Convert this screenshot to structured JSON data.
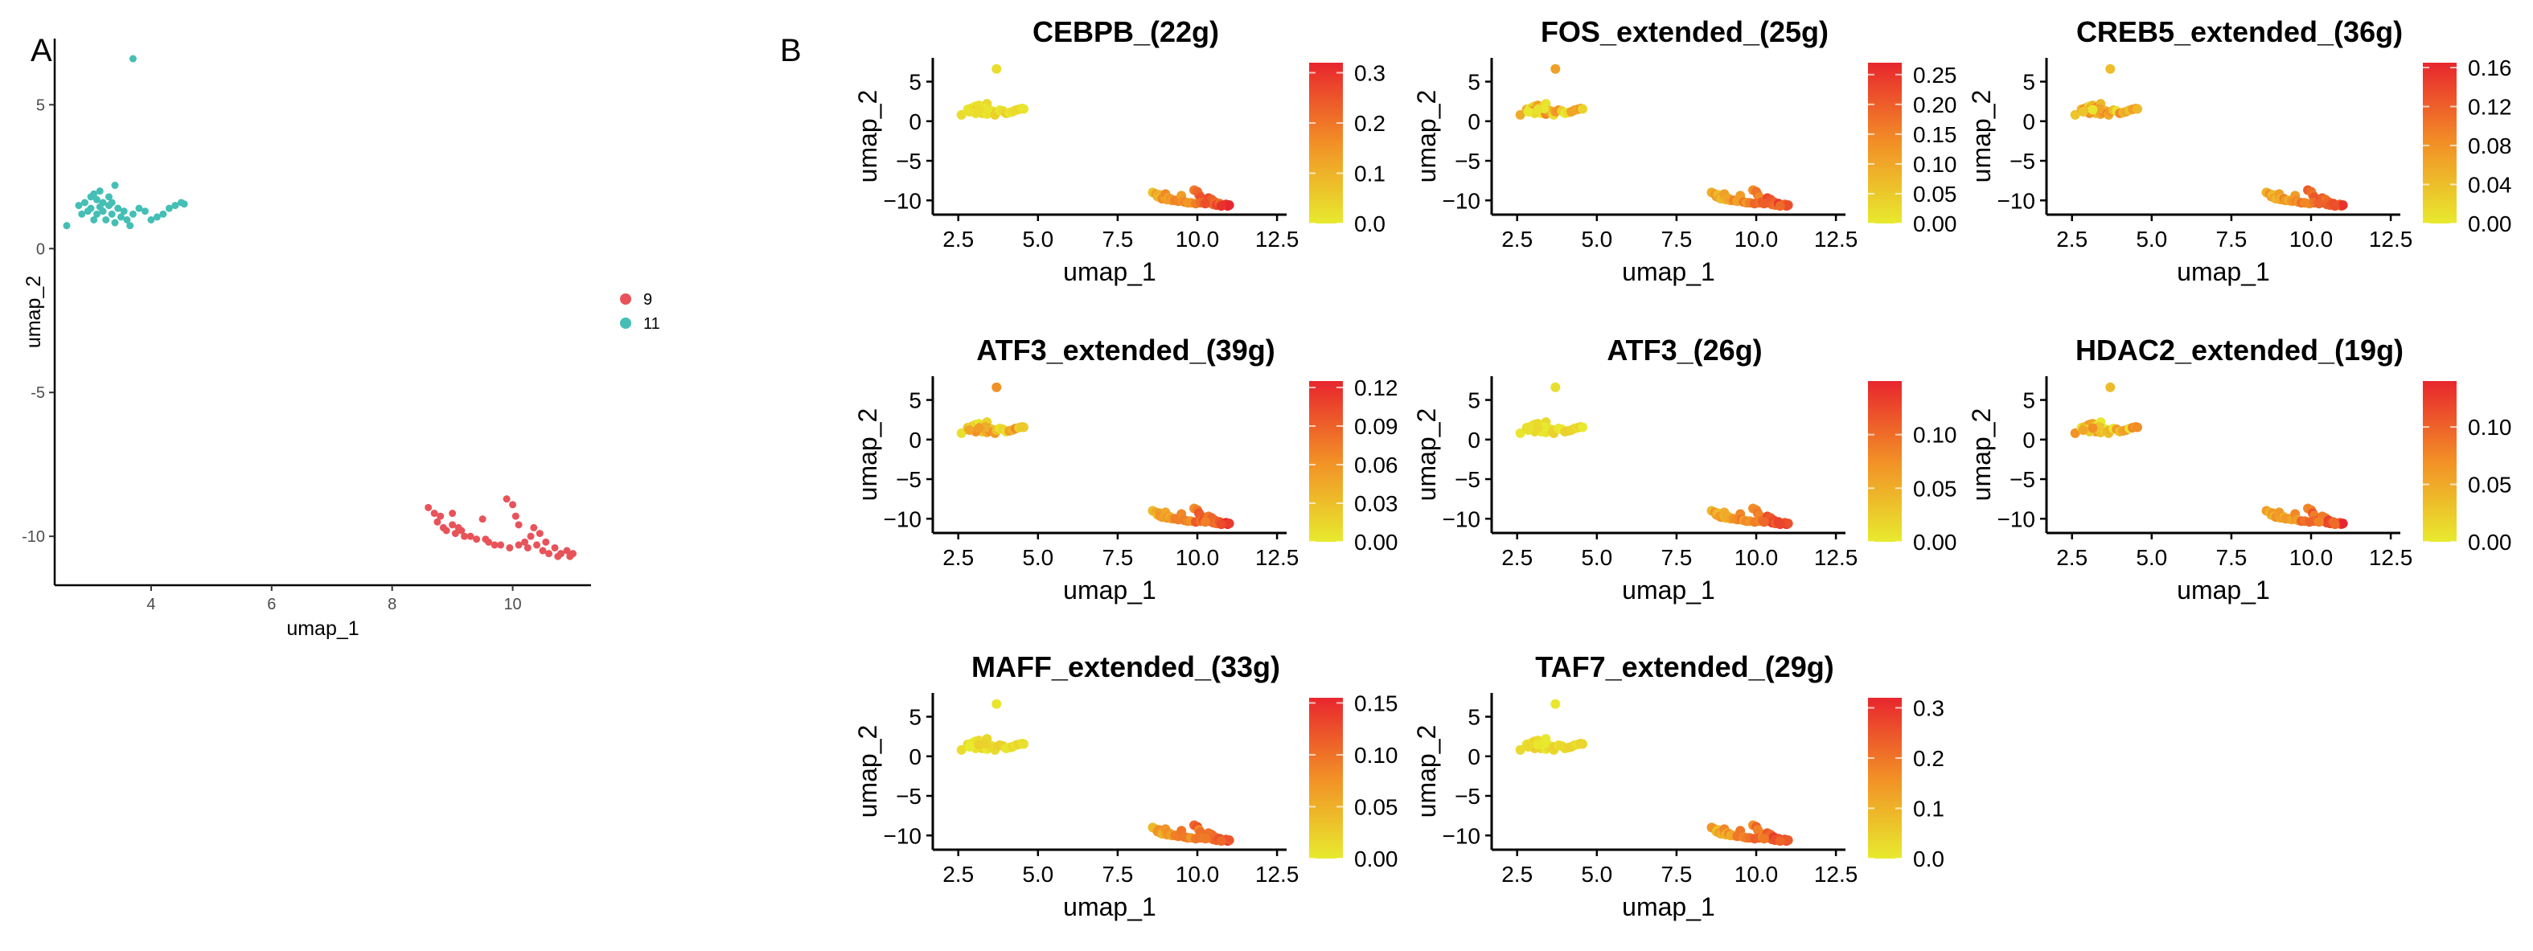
{
  "figure": {
    "panel_a_label": "A",
    "panel_b_label": "B"
  },
  "chart_data": [
    {
      "type": "scatter",
      "panel": "A",
      "title": "",
      "xlabel": "umap_1",
      "ylabel": "umap_2",
      "xlim": [
        2.4,
        11.3
      ],
      "ylim": [
        -11.7,
        7.3
      ],
      "xticks": [
        4,
        6,
        8,
        10
      ],
      "yticks": [
        5,
        0,
        -5,
        -10
      ],
      "legend": {
        "placement": "right",
        "entries": [
          {
            "name": "9",
            "color": "#E8535A"
          },
          {
            "name": "11",
            "color": "#45BFB5"
          }
        ]
      },
      "series": [
        {
          "name": "11",
          "color": "#45BFB5",
          "points": [
            [
              3.7,
              6.6
            ],
            [
              2.6,
              0.8
            ],
            [
              2.8,
              1.5
            ],
            [
              2.9,
              1.6
            ],
            [
              3.0,
              1.8
            ],
            [
              3.0,
              1.4
            ],
            [
              3.05,
              1.9
            ],
            [
              3.1,
              1.7
            ],
            [
              3.1,
              1.2
            ],
            [
              3.15,
              2.0
            ],
            [
              3.2,
              1.6
            ],
            [
              3.2,
              1.3
            ],
            [
              3.25,
              1.0
            ],
            [
              3.3,
              1.8
            ],
            [
              3.3,
              1.5
            ],
            [
              3.35,
              1.2
            ],
            [
              3.4,
              2.2
            ],
            [
              3.4,
              0.9
            ],
            [
              3.45,
              1.4
            ],
            [
              3.5,
              1.1
            ],
            [
              3.55,
              1.3
            ],
            [
              3.6,
              1.0
            ],
            [
              3.65,
              0.8
            ],
            [
              3.7,
              1.2
            ],
            [
              3.8,
              1.4
            ],
            [
              3.9,
              1.3
            ],
            [
              4.0,
              1.0
            ],
            [
              4.1,
              1.1
            ],
            [
              4.2,
              1.2
            ],
            [
              4.3,
              1.4
            ],
            [
              4.4,
              1.5
            ],
            [
              4.5,
              1.6
            ],
            [
              4.55,
              1.55
            ],
            [
              2.95,
              1.3
            ],
            [
              3.05,
              1.0
            ],
            [
              3.35,
              1.6
            ],
            [
              3.15,
              1.45
            ],
            [
              2.85,
              1.2
            ]
          ]
        },
        {
          "name": "9",
          "color": "#E8535A",
          "points": [
            [
              8.6,
              -9.0
            ],
            [
              8.7,
              -9.2
            ],
            [
              8.75,
              -9.5
            ],
            [
              8.8,
              -9.3
            ],
            [
              8.85,
              -9.7
            ],
            [
              8.9,
              -9.8
            ],
            [
              9.0,
              -9.6
            ],
            [
              9.0,
              -9.2
            ],
            [
              9.05,
              -9.9
            ],
            [
              9.1,
              -9.7
            ],
            [
              9.15,
              -9.8
            ],
            [
              9.2,
              -10.0
            ],
            [
              9.3,
              -10.0
            ],
            [
              9.4,
              -10.1
            ],
            [
              9.5,
              -9.4
            ],
            [
              9.55,
              -10.1
            ],
            [
              9.6,
              -10.2
            ],
            [
              9.7,
              -10.3
            ],
            [
              9.8,
              -10.3
            ],
            [
              9.9,
              -8.7
            ],
            [
              10.0,
              -8.9
            ],
            [
              10.05,
              -9.3
            ],
            [
              10.1,
              -9.6
            ],
            [
              9.95,
              -10.4
            ],
            [
              10.1,
              -10.3
            ],
            [
              10.2,
              -10.2
            ],
            [
              10.3,
              -10.0
            ],
            [
              10.35,
              -9.7
            ],
            [
              10.4,
              -10.3
            ],
            [
              10.45,
              -9.9
            ],
            [
              10.5,
              -10.5
            ],
            [
              10.55,
              -10.2
            ],
            [
              10.6,
              -10.6
            ],
            [
              10.7,
              -10.4
            ],
            [
              10.8,
              -10.6
            ],
            [
              10.9,
              -10.5
            ],
            [
              10.95,
              -10.7
            ],
            [
              11.0,
              -10.6
            ],
            [
              10.75,
              -10.7
            ],
            [
              10.25,
              -10.4
            ]
          ]
        }
      ]
    },
    {
      "type": "scatter",
      "panel": "B",
      "xlabel": "umap_1",
      "ylabel": "umap_2",
      "xlim": [
        1.7,
        12.8
      ],
      "ylim": [
        -11.8,
        8.0
      ],
      "xticks": [
        "2.5",
        "5.0",
        "7.5",
        "10.0",
        "12.5"
      ],
      "yticks": [
        "5",
        "0",
        "-5",
        "-10"
      ],
      "color_scale": {
        "low": "#E8EA2E",
        "mid": "#F29026",
        "high": "#E8262E"
      },
      "subplots": [
        {
          "title": "CEBPB_(22g)",
          "colorbar_max": 0.32,
          "colorbar_ticks": [
            "0.0",
            "0.1",
            "0.2",
            "0.3"
          ],
          "colorbar_tick_values": [
            0.0,
            0.1,
            0.2,
            0.3
          ],
          "high_cluster": "9"
        },
        {
          "title": "FOS_extended_(25g)",
          "colorbar_max": 0.27,
          "colorbar_ticks": [
            "0.00",
            "0.05",
            "0.10",
            "0.15",
            "0.20",
            "0.25"
          ],
          "colorbar_tick_values": [
            0.0,
            0.05,
            0.1,
            0.15,
            0.2,
            0.25
          ],
          "high_cluster": "both"
        },
        {
          "title": "CREB5_extended_(36g)",
          "colorbar_max": 0.165,
          "colorbar_ticks": [
            "0.00",
            "0.04",
            "0.08",
            "0.12",
            "0.16"
          ],
          "colorbar_tick_values": [
            0.0,
            0.04,
            0.08,
            0.12,
            0.16
          ],
          "high_cluster": "both"
        },
        {
          "title": "ATF3_extended_(39g)",
          "colorbar_max": 0.125,
          "colorbar_ticks": [
            "0.00",
            "0.03",
            "0.06",
            "0.09",
            "0.12"
          ],
          "colorbar_tick_values": [
            0.0,
            0.03,
            0.06,
            0.09,
            0.12
          ],
          "high_cluster": "both"
        },
        {
          "title": "ATF3_(26g)",
          "colorbar_max": 0.15,
          "colorbar_ticks": [
            "0.00",
            "0.05",
            "0.10"
          ],
          "colorbar_tick_values": [
            0.0,
            0.05,
            0.1
          ],
          "high_cluster": "9"
        },
        {
          "title": "HDAC2_extended_(19g)",
          "colorbar_max": 0.14,
          "colorbar_ticks": [
            "0.00",
            "0.05",
            "0.10"
          ],
          "colorbar_tick_values": [
            0.0,
            0.05,
            0.1
          ],
          "high_cluster": "both"
        },
        {
          "title": "MAFF_extended_(33g)",
          "colorbar_max": 0.155,
          "colorbar_ticks": [
            "0.00",
            "0.05",
            "0.10",
            "0.15"
          ],
          "colorbar_tick_values": [
            0.0,
            0.05,
            0.1,
            0.15
          ],
          "high_cluster": "9"
        },
        {
          "title": "TAF7_extended_(29g)",
          "colorbar_max": 0.32,
          "colorbar_ticks": [
            "0.0",
            "0.1",
            "0.2",
            "0.3"
          ],
          "colorbar_tick_values": [
            0.0,
            0.1,
            0.2,
            0.3
          ],
          "high_cluster": "9"
        }
      ]
    }
  ]
}
